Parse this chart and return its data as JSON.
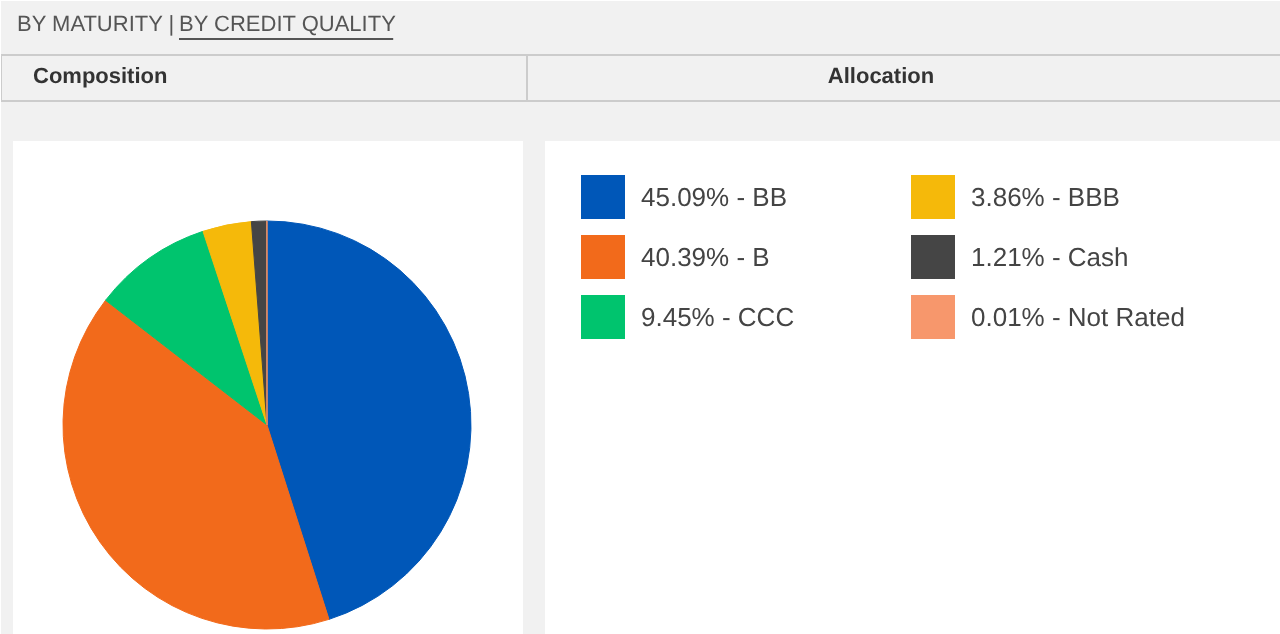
{
  "chart_data": {
    "type": "pie",
    "annotations": [
      "BY MATURITY |",
      "BY CREDIT QUALITY",
      "Composition",
      "Allocation"
    ],
    "categories": [
      "BB",
      "B",
      "CCC",
      "BBB",
      "Cash",
      "Not Rated"
    ],
    "values": [
      45.09,
      40.39,
      9.45,
      3.86,
      1.21,
      0.01
    ],
    "value_labels": [
      "45.09%",
      "40.39%",
      "9.45%",
      "3.86%",
      "1.21%",
      "0.01%"
    ],
    "colors": [
      "#0057b8",
      "#f26a1b",
      "#00c46e",
      "#f5b90a",
      "#454545",
      "#f7976c"
    ],
    "legend": "right"
  }
}
